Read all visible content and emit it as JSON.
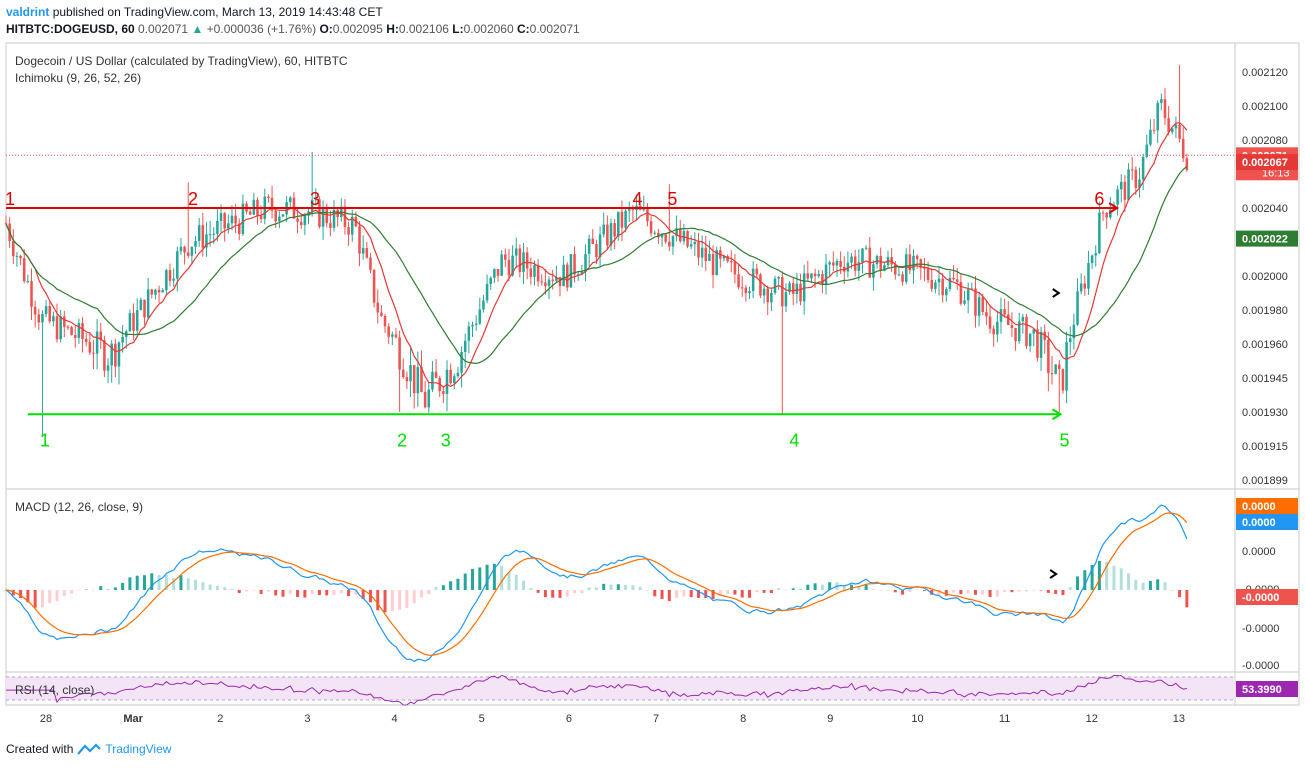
{
  "header": {
    "author": "valdrint",
    "published_text": "published on TradingView.com, March 13, 2019 14:43:48 CET",
    "symbol": "HITBTC:DOGEUSD, 60",
    "last": "0.002071",
    "change": "+0.000036 (+1.76%)",
    "o_label": "O:",
    "o": "0.002095",
    "h_label": "H:",
    "h": "0.002106",
    "l_label": "L:",
    "l": "0.002060",
    "c_label": "C:",
    "c": "0.002071"
  },
  "footer": {
    "created_with": "Created with",
    "brand": "TradingView"
  },
  "colors": {
    "bull": "#26a69a",
    "bear": "#ef5350",
    "ma_fast": "#e53935",
    "ma_slow": "#2e7d32",
    "macd": "#2196f3",
    "signal": "#ff6d00",
    "rsi": "#9c27b0",
    "support": "#00e000",
    "resistance": "#e00000"
  },
  "chart_data": [
    {
      "type": "candlestick",
      "title": "Dogecoin / US Dollar (calculated by TradingView), 60, HITBTC",
      "subtitle": "Ichimoku (9, 26, 52, 26)",
      "y_ticks": [
        "0.002120",
        "0.002100",
        "0.002080",
        "0.002060",
        "0.002040",
        "0.002020",
        "0.002000",
        "0.001980",
        "0.001960",
        "0.001945",
        "0.001930",
        "0.001915",
        "0.001899"
      ],
      "x_ticks": [
        "28",
        "Mar",
        "2",
        "3",
        "4",
        "5",
        "6",
        "7",
        "8",
        "9",
        "10",
        "11",
        "12",
        "13"
      ],
      "price_labels": {
        "last": "0.002071",
        "countdown": "16:13",
        "ma_fast": "0.002067",
        "ma_slow": "0.002022"
      },
      "resistance_level": 0.00204,
      "support_level": 0.001929,
      "resistance_labels": [
        "1",
        "2",
        "3",
        "4",
        "5",
        "6"
      ],
      "support_labels": [
        "1",
        "2",
        "3",
        "4",
        "5"
      ],
      "key_points": [
        {
          "t": 0.0,
          "v": 0.002031
        },
        {
          "t": 0.4,
          "v": 0.001975
        },
        {
          "t": 1.2,
          "v": 0.001955
        },
        {
          "t": 2.1,
          "v": 0.00202
        },
        {
          "t": 3.0,
          "v": 0.00204
        },
        {
          "t": 3.5,
          "v": 0.002038
        },
        {
          "t": 4.0,
          "v": 0.00203
        },
        {
          "t": 4.3,
          "v": 0.001975
        },
        {
          "t": 4.8,
          "v": 0.001935
        },
        {
          "t": 5.2,
          "v": 0.001955
        },
        {
          "t": 5.7,
          "v": 0.00201
        },
        {
          "t": 6.4,
          "v": 0.002
        },
        {
          "t": 7.2,
          "v": 0.002038
        },
        {
          "t": 7.6,
          "v": 0.002025
        },
        {
          "t": 8.2,
          "v": 0.002005
        },
        {
          "t": 9.0,
          "v": 0.001988
        },
        {
          "t": 9.6,
          "v": 0.00201
        },
        {
          "t": 10.3,
          "v": 0.002005
        },
        {
          "t": 10.9,
          "v": 0.001995
        },
        {
          "t": 11.3,
          "v": 0.001975
        },
        {
          "t": 11.8,
          "v": 0.001965
        },
        {
          "t": 12.1,
          "v": 0.00194
        },
        {
          "t": 12.25,
          "v": 0.001975
        },
        {
          "t": 12.6,
          "v": 0.00204
        },
        {
          "t": 13.0,
          "v": 0.00206
        },
        {
          "t": 13.25,
          "v": 0.0021
        },
        {
          "t": 13.55,
          "v": 0.002071
        }
      ],
      "x_domain": [
        0,
        13.85
      ]
    },
    {
      "type": "line",
      "title": "MACD (12, 26, close, 9)",
      "y_ticks": [
        "0.0000",
        "0.0000",
        "-0.0000",
        "-0.0000",
        "-0.0000"
      ],
      "price_labels": {
        "macd": "0.0000",
        "signal": "0.0000",
        "hist": "-0.0000"
      },
      "series": [
        {
          "name": "MACD"
        },
        {
          "name": "Signal"
        },
        {
          "name": "Histogram"
        }
      ]
    },
    {
      "type": "line",
      "title": "RSI (14, close)",
      "price_labels": {
        "rsi": "53.3990"
      },
      "series": [
        {
          "name": "RSI"
        }
      ]
    }
  ]
}
